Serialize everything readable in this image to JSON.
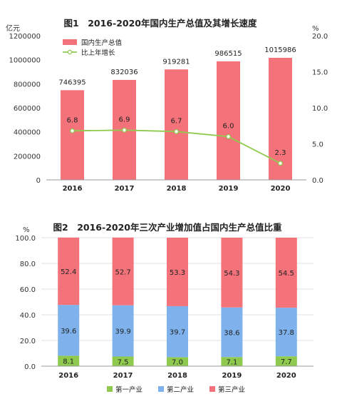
{
  "chart_data": [
    {
      "type": "bar",
      "title": "图1　2016-2020年国内生产总值及其增长速度",
      "categories": [
        "2016",
        "2017",
        "2018",
        "2019",
        "2020"
      ],
      "left_unit": "亿元",
      "right_unit": "%",
      "left_ylim": [
        0,
        1200000
      ],
      "left_ticks": [
        "0",
        "200000",
        "400000",
        "600000",
        "800000",
        "1000000",
        "1200000"
      ],
      "right_ylim": [
        0,
        20
      ],
      "right_ticks": [
        "0.0",
        "5.0",
        "10.0",
        "15.0",
        "20.0"
      ],
      "legend_position": "top-left",
      "series": [
        {
          "name": "国内生产总值",
          "kind": "bar",
          "axis": "left",
          "color": "#f4727a",
          "values": [
            746395,
            832036,
            919281,
            986515,
            1015986
          ],
          "labels": [
            "746395",
            "832036",
            "919281",
            "986515",
            "1015986"
          ]
        },
        {
          "name": "比上年增长",
          "kind": "line",
          "axis": "right",
          "color": "#8fca4f",
          "values": [
            6.8,
            6.9,
            6.7,
            6.0,
            2.3
          ],
          "labels": [
            "6.8",
            "6.9",
            "6.7",
            "6.0",
            "2.3"
          ]
        }
      ]
    },
    {
      "type": "bar",
      "stacked": true,
      "title": "图2　2016-2020年三次产业增加值占国内生产总值比重",
      "categories": [
        "2016",
        "2017",
        "2018",
        "2019",
        "2020"
      ],
      "unit": "%",
      "ylim": [
        0,
        100
      ],
      "yticks": [
        "0.0",
        "20.0",
        "40.0",
        "60.0",
        "80.0",
        "100.0"
      ],
      "legend_position": "bottom",
      "series": [
        {
          "name": "第一产业",
          "color": "#8fca4f",
          "values": [
            8.1,
            7.5,
            7.0,
            7.1,
            7.7
          ],
          "labels": [
            "8.1",
            "7.5",
            "7.0",
            "7.1",
            "7.7"
          ]
        },
        {
          "name": "第二产业",
          "color": "#7fb2ec",
          "values": [
            39.6,
            39.9,
            39.7,
            38.6,
            37.8
          ],
          "labels": [
            "39.6",
            "39.9",
            "39.7",
            "38.6",
            "37.8"
          ]
        },
        {
          "name": "第三产业",
          "color": "#f4727a",
          "values": [
            52.4,
            52.7,
            53.3,
            54.3,
            54.5
          ],
          "labels": [
            "52.4",
            "52.7",
            "53.3",
            "54.3",
            "54.5"
          ]
        }
      ]
    }
  ]
}
